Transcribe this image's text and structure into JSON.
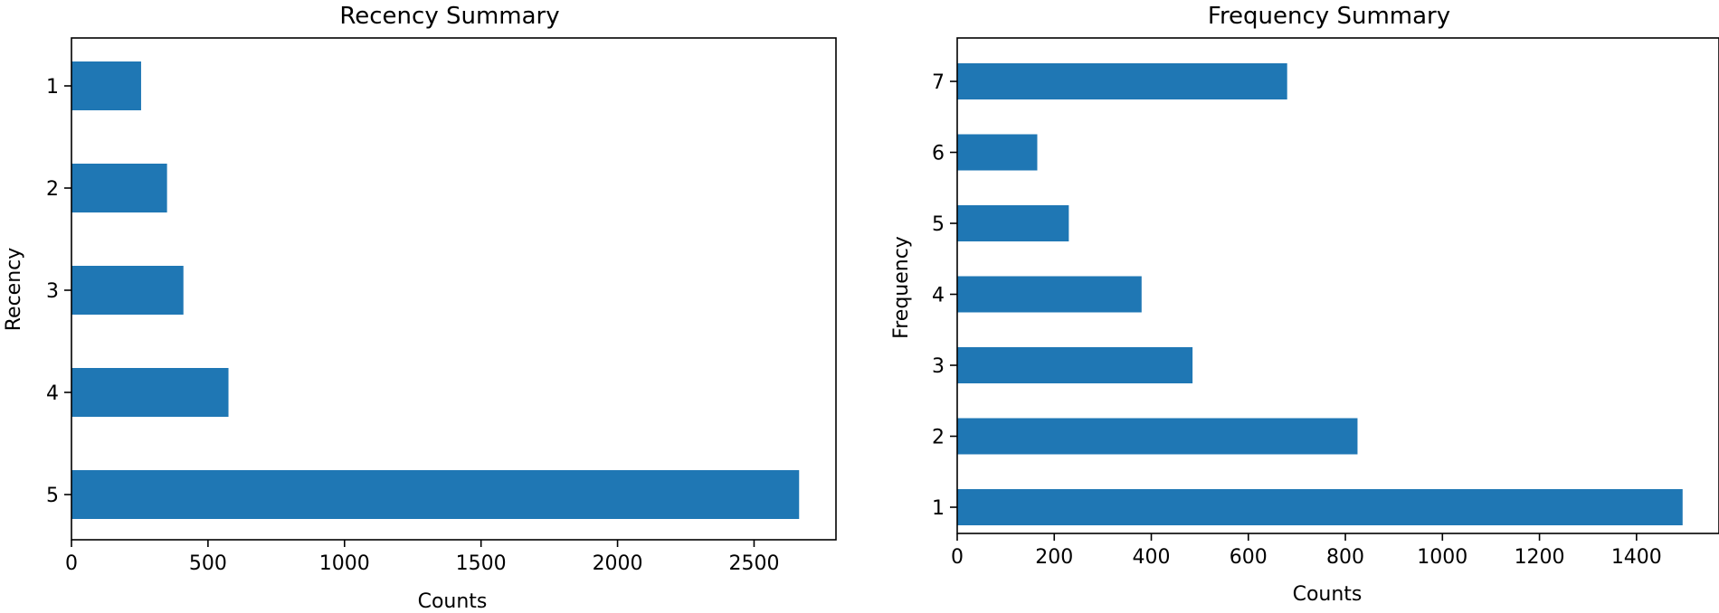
{
  "chart_data": [
    {
      "type": "bar",
      "orientation": "horizontal",
      "title": "Recency Summary",
      "xlabel": "Counts",
      "ylabel": "Recency",
      "categories": [
        "1",
        "2",
        "3",
        "4",
        "5"
      ],
      "values": [
        255,
        350,
        410,
        575,
        2665
      ],
      "xlim": [
        0,
        2800
      ],
      "xticks": [
        0,
        500,
        1000,
        1500,
        2000,
        2500
      ],
      "color": "#1f77b4",
      "grid": false
    },
    {
      "type": "bar",
      "orientation": "horizontal",
      "title": "Frequency Summary",
      "xlabel": "Counts",
      "ylabel": "Frequency",
      "categories": [
        "7",
        "6",
        "5",
        "4",
        "3",
        "2",
        "1"
      ],
      "values": [
        680,
        165,
        230,
        380,
        485,
        825,
        1495
      ],
      "xlim": [
        0,
        1570
      ],
      "xticks": [
        0,
        200,
        400,
        600,
        800,
        1000,
        1200,
        1400
      ],
      "color": "#1f77b4",
      "grid": false
    }
  ]
}
